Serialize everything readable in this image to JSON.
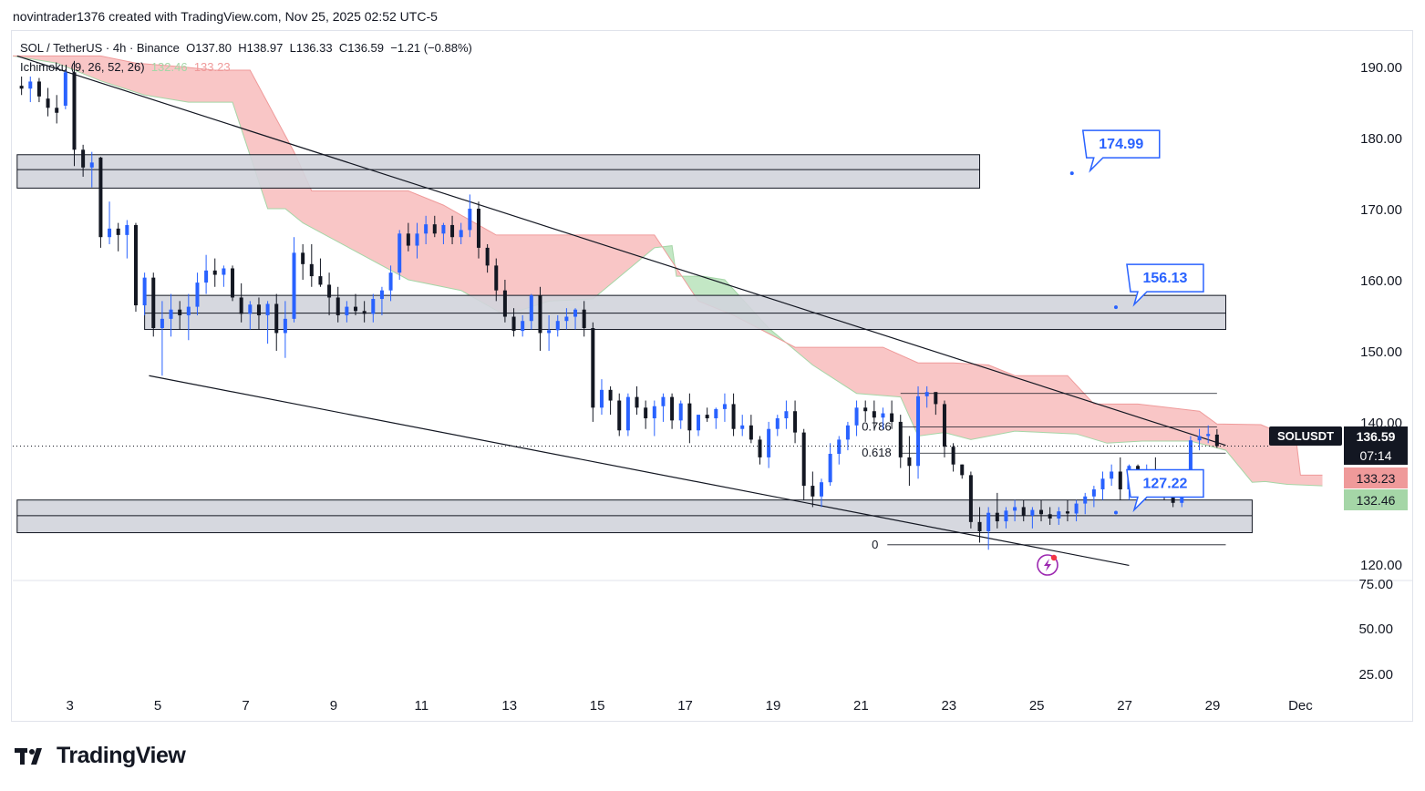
{
  "header": {
    "caption": "novintrader1376 created with TradingView.com, Nov 25, 2025 02:52 UTC-5"
  },
  "legend": {
    "symbol": "SOL / TetherUS · 4h · Binance",
    "open": "O137.80",
    "high": "H138.97",
    "low": "L136.33",
    "close": "C136.59",
    "change": "−1.21 (−0.88%)",
    "indicator": "Ichimoku (9, 26, 52, 26)",
    "ind_val1": "132.46",
    "ind_val2": "133.23"
  },
  "price_scale": {
    "symbol_badge": "SOLUSDT",
    "last_price": "136.59",
    "countdown": "07:14",
    "cloud_top": "133.23",
    "cloud_bottom": "132.46"
  },
  "brand": {
    "name": "TradingView"
  },
  "colors": {
    "up": "#2962ff",
    "down": "#131722",
    "cloud_bear": "#f8bcbc",
    "cloud_bull": "#b9e3bb",
    "zone": "#d1d4dc"
  },
  "chart_data": {
    "type": "candlestick",
    "title": "SOL / TetherUS · 4h · Binance",
    "x_tick_labels": [
      "3",
      "5",
      "7",
      "9",
      "11",
      "13",
      "15",
      "17",
      "19",
      "21",
      "23",
      "25",
      "27",
      "29",
      "Dec"
    ],
    "x_tick_days": [
      3,
      5,
      7,
      9,
      11,
      13,
      15,
      17,
      19,
      21,
      23,
      25,
      27,
      29,
      31
    ],
    "x_range_days": [
      1.7,
      31.8
    ],
    "y_tick_labels": [
      "190.00",
      "180.00",
      "170.00",
      "160.00",
      "150.00",
      "140.00",
      "120.00"
    ],
    "y_tick_values": [
      190,
      180,
      170,
      160,
      150,
      140,
      120
    ],
    "y_range": [
      117.8,
      194.5
    ],
    "lower_scale_labels": [
      "75.00",
      "50.00",
      "25.00"
    ],
    "last_price": 136.59,
    "candles": [
      [
        1.9,
        187.3,
        188.6,
        186,
        186.9
      ],
      [
        2.1,
        186.9,
        188.6,
        185,
        187.9
      ],
      [
        2.3,
        187.9,
        188.4,
        185,
        185.8
      ],
      [
        2.5,
        185.5,
        187,
        183,
        184.2
      ],
      [
        2.7,
        184.2,
        186,
        182,
        183.5
      ],
      [
        2.9,
        184.5,
        189.5,
        184,
        189.2
      ],
      [
        3.1,
        189.2,
        190.8,
        176,
        178.3
      ],
      [
        3.3,
        178.3,
        179,
        174.5,
        175.8
      ],
      [
        3.5,
        175.8,
        178,
        173,
        176.5
      ],
      [
        3.7,
        177.2,
        177.3,
        164.5,
        166
      ],
      [
        3.9,
        166,
        171,
        165,
        167.2
      ],
      [
        4.1,
        167.2,
        168,
        164,
        166.3
      ],
      [
        4.3,
        166.3,
        168.4,
        163,
        167.7
      ],
      [
        4.5,
        167.7,
        168,
        155.5,
        156.4
      ],
      [
        4.7,
        156.4,
        161,
        155,
        160.3
      ],
      [
        4.9,
        160.3,
        161,
        152,
        153.2
      ],
      [
        5.1,
        153.2,
        157,
        146.5,
        154.5
      ],
      [
        5.3,
        154.5,
        158,
        152,
        155.8
      ],
      [
        5.5,
        155.8,
        157,
        153,
        155
      ],
      [
        5.7,
        155,
        158,
        151.5,
        156.2
      ],
      [
        5.9,
        156.2,
        161,
        155,
        159.6
      ],
      [
        6.1,
        159.6,
        163.5,
        158,
        161.3
      ],
      [
        6.3,
        161.3,
        163,
        159,
        160.7
      ],
      [
        6.5,
        160.7,
        162,
        159,
        161.6
      ],
      [
        6.7,
        161.6,
        162,
        157,
        157.5
      ],
      [
        6.9,
        157.5,
        159.5,
        154,
        155.2
      ],
      [
        7.1,
        155.2,
        157,
        153,
        156.5
      ],
      [
        7.3,
        156.5,
        157.5,
        153,
        155
      ],
      [
        7.5,
        155,
        157,
        151,
        156.6
      ],
      [
        7.7,
        156.6,
        158,
        150,
        152.5
      ],
      [
        7.9,
        152.5,
        157,
        149,
        154.5
      ],
      [
        8.1,
        154.5,
        166,
        154,
        163.8
      ],
      [
        8.3,
        163.8,
        165,
        160,
        162.2
      ],
      [
        8.5,
        162.2,
        165,
        159,
        160.5
      ],
      [
        8.7,
        160.5,
        163,
        159,
        159.3
      ],
      [
        8.9,
        159.3,
        161,
        155,
        157.5
      ],
      [
        9.1,
        157.5,
        159,
        154,
        155
      ],
      [
        9.3,
        155,
        157,
        154,
        156.2
      ],
      [
        9.5,
        156.2,
        158,
        155,
        155.6
      ],
      [
        9.7,
        155.6,
        157,
        154,
        155.2
      ],
      [
        9.9,
        155.2,
        158,
        154,
        157.3
      ],
      [
        10.1,
        157.3,
        159,
        155,
        158.5
      ],
      [
        10.3,
        158.5,
        162,
        157,
        161
      ],
      [
        10.5,
        161,
        167,
        160,
        166.5
      ],
      [
        10.7,
        166.5,
        168,
        164,
        164.8
      ],
      [
        10.9,
        164.8,
        168,
        163,
        166.5
      ],
      [
        11.1,
        166.5,
        169,
        165,
        167.8
      ],
      [
        11.3,
        167.8,
        169,
        166,
        166.5
      ],
      [
        11.5,
        166.5,
        168,
        165,
        167.7
      ],
      [
        11.7,
        167.7,
        169,
        165,
        166
      ],
      [
        11.9,
        166,
        168,
        165,
        167
      ],
      [
        12.1,
        167,
        172,
        166,
        170
      ],
      [
        12.3,
        170,
        171,
        163,
        164.5
      ],
      [
        12.5,
        164.5,
        165,
        161,
        162
      ],
      [
        12.7,
        162,
        163,
        157,
        158.5
      ],
      [
        12.9,
        158.5,
        160,
        154,
        154.8
      ],
      [
        13.1,
        154.8,
        156,
        152,
        152.8
      ],
      [
        13.3,
        152.8,
        155,
        152,
        154.2
      ],
      [
        13.5,
        154.2,
        158,
        153,
        157.8
      ],
      [
        13.7,
        157.8,
        159,
        150,
        152.5
      ],
      [
        13.9,
        152.5,
        155,
        150,
        152.9
      ],
      [
        14.1,
        152.9,
        155,
        152,
        154.2
      ],
      [
        14.3,
        154.2,
        156,
        153,
        154.8
      ],
      [
        14.5,
        154.8,
        156,
        153,
        155.8
      ],
      [
        14.7,
        155.8,
        157,
        152,
        153.2
      ],
      [
        14.9,
        153.2,
        154,
        140,
        142
      ],
      [
        15.1,
        142,
        146,
        141,
        144.5
      ],
      [
        15.3,
        144.5,
        145,
        141,
        143
      ],
      [
        15.5,
        143,
        144,
        138,
        138.8
      ],
      [
        15.7,
        138.8,
        144,
        138,
        143.5
      ],
      [
        15.9,
        143.5,
        145,
        141,
        142
      ],
      [
        16.1,
        142,
        143,
        139,
        140.5
      ],
      [
        16.3,
        140.5,
        143,
        138,
        142.2
      ],
      [
        16.5,
        142.2,
        144,
        140,
        143.5
      ],
      [
        16.7,
        143.5,
        144,
        139,
        140.2
      ],
      [
        16.9,
        140.2,
        143,
        139,
        142.6
      ],
      [
        17.1,
        142.6,
        144,
        137,
        138.8
      ],
      [
        17.3,
        138.8,
        141,
        138,
        141
      ],
      [
        17.5,
        141,
        142,
        140,
        140.5
      ],
      [
        17.7,
        140.5,
        142,
        139,
        141.8
      ],
      [
        17.9,
        141.8,
        144,
        140,
        142.5
      ],
      [
        18.1,
        142.5,
        144,
        138,
        139
      ],
      [
        18.3,
        139,
        141,
        138,
        139.5
      ],
      [
        18.5,
        139.5,
        141,
        137,
        137.5
      ],
      [
        18.7,
        137.5,
        138,
        134,
        135
      ],
      [
        18.9,
        135,
        140,
        133.5,
        139
      ],
      [
        19.1,
        139,
        141,
        138,
        140.5
      ],
      [
        19.3,
        140.5,
        143,
        139,
        141.5
      ],
      [
        19.5,
        141.5,
        143,
        137,
        138.5
      ],
      [
        19.7,
        138.5,
        139,
        129,
        131
      ],
      [
        19.9,
        131,
        133,
        128,
        129.5
      ],
      [
        20.1,
        129.5,
        132,
        128,
        131.5
      ],
      [
        20.3,
        131.5,
        137,
        131,
        135.5
      ],
      [
        20.5,
        135.5,
        138,
        134,
        137.5
      ],
      [
        20.7,
        137.5,
        140,
        136,
        139.5
      ],
      [
        20.9,
        139.5,
        143,
        138,
        142
      ],
      [
        21.1,
        142,
        143,
        140,
        141.5
      ],
      [
        21.3,
        141.5,
        143,
        139,
        140.6
      ],
      [
        21.5,
        140.6,
        142,
        139,
        141.2
      ],
      [
        21.7,
        141.2,
        143,
        139,
        140
      ],
      [
        21.9,
        140,
        141,
        133.5,
        135
      ],
      [
        22.1,
        135,
        138,
        131,
        133.8
      ],
      [
        22.3,
        133.8,
        145,
        132,
        143.6
      ],
      [
        22.5,
        143.6,
        145,
        142,
        144.2
      ],
      [
        22.7,
        144.2,
        144,
        141,
        142.5
      ],
      [
        22.9,
        142.5,
        143,
        135,
        136.5
      ],
      [
        23.1,
        136.5,
        137,
        133,
        134
      ],
      [
        23.3,
        134,
        134,
        132,
        132.5
      ],
      [
        23.5,
        132.5,
        133,
        125,
        125.9
      ],
      [
        23.7,
        125.9,
        128,
        123,
        124.6
      ],
      [
        23.9,
        124.6,
        128,
        122,
        127.2
      ],
      [
        24.1,
        127.2,
        130,
        125,
        126
      ],
      [
        24.3,
        126,
        128,
        125,
        127.5
      ],
      [
        24.5,
        127.5,
        129,
        126,
        128
      ],
      [
        24.7,
        128,
        129,
        126,
        126.8
      ],
      [
        24.9,
        126.8,
        128,
        125,
        127.6
      ],
      [
        25.1,
        127.6,
        129,
        126,
        127
      ],
      [
        25.3,
        127,
        128,
        125.5,
        126.4
      ],
      [
        25.5,
        126.4,
        128,
        125.5,
        127.4
      ],
      [
        25.7,
        127.4,
        129,
        126,
        127.1
      ],
      [
        25.9,
        127.1,
        129,
        126,
        128.5
      ],
      [
        26.1,
        128.5,
        130,
        127,
        129.5
      ],
      [
        26.3,
        129.5,
        131,
        128,
        130.5
      ],
      [
        26.5,
        130.5,
        133,
        129,
        132
      ],
      [
        26.7,
        132,
        134,
        131,
        133
      ],
      [
        26.9,
        133,
        135,
        129,
        130.5
      ],
      [
        27.1,
        130.5,
        134,
        129,
        133.8
      ],
      [
        27.3,
        133.8,
        134,
        131,
        131.2
      ],
      [
        27.5,
        131.2,
        134,
        130,
        133.1
      ],
      [
        27.7,
        133.1,
        135,
        131,
        131.5
      ],
      [
        27.9,
        131.5,
        132,
        129,
        130
      ],
      [
        28.1,
        130,
        131,
        128,
        128.6
      ],
      [
        28.3,
        128.6,
        133,
        128,
        130.4
      ],
      [
        28.5,
        130.4,
        138,
        130,
        137.4
      ],
      [
        28.7,
        137.4,
        139,
        136,
        138
      ],
      [
        28.9,
        138,
        139.5,
        137,
        138.3
      ],
      [
        29.1,
        138.2,
        138.97,
        136.33,
        136.59
      ]
    ],
    "ichimoku": {
      "params": [
        9,
        26,
        52,
        26
      ],
      "span_a": [
        [
          1.7,
          191.5
        ],
        [
          2.7,
          190.5
        ],
        [
          3.7,
          188
        ],
        [
          4.7,
          186
        ],
        [
          5.7,
          185
        ],
        [
          6.7,
          185
        ],
        [
          7.5,
          170
        ],
        [
          7.9,
          170
        ],
        [
          8.3,
          168
        ],
        [
          9.5,
          164
        ],
        [
          10.7,
          160
        ],
        [
          11.9,
          158.5
        ],
        [
          12.9,
          155
        ],
        [
          13.9,
          157
        ],
        [
          14.9,
          157.3
        ],
        [
          16.3,
          164.5
        ],
        [
          16.7,
          164.8
        ],
        [
          16.8,
          160.5
        ],
        [
          17.4,
          160.5
        ],
        [
          17.9,
          160
        ],
        [
          18.9,
          153.2
        ],
        [
          19.9,
          148
        ],
        [
          20.9,
          144
        ],
        [
          21.9,
          143.5
        ],
        [
          22.3,
          138
        ],
        [
          22.9,
          138.5
        ],
        [
          23.5,
          137.5
        ],
        [
          24.5,
          138.7
        ],
        [
          25.9,
          138.3
        ],
        [
          26.6,
          137
        ],
        [
          27.4,
          137.3
        ],
        [
          28.5,
          137.3
        ],
        [
          29.3,
          136
        ],
        [
          29.9,
          131.5
        ],
        [
          30.2,
          131.6
        ],
        [
          30.7,
          131.2
        ],
        [
          31.5,
          131
        ]
      ],
      "span_b": [
        [
          1.7,
          191.5
        ],
        [
          3.7,
          191.5
        ],
        [
          4.5,
          190.5
        ],
        [
          5.5,
          190
        ],
        [
          6.3,
          189.5
        ],
        [
          7.1,
          189.5
        ],
        [
          8.1,
          178
        ],
        [
          8.5,
          172.5
        ],
        [
          10.7,
          172.5
        ],
        [
          11.5,
          170.5
        ],
        [
          12.7,
          166.3
        ],
        [
          15.1,
          166.3
        ],
        [
          16.3,
          166.3
        ],
        [
          17.3,
          157
        ],
        [
          18.1,
          155
        ],
        [
          19.5,
          150.5
        ],
        [
          21.5,
          150.5
        ],
        [
          22.3,
          148.3
        ],
        [
          23.1,
          148.3
        ],
        [
          23.9,
          148
        ],
        [
          24.5,
          146.5
        ],
        [
          25.7,
          146.5
        ],
        [
          26.3,
          142.5
        ],
        [
          27.3,
          142.5
        ],
        [
          28.7,
          141.5
        ],
        [
          29.1,
          139.7
        ],
        [
          30.1,
          139.6
        ],
        [
          30.9,
          137.5
        ],
        [
          31.0,
          132.5
        ],
        [
          31.5,
          132.5
        ]
      ]
    },
    "zones": [
      {
        "day_from": 1.8,
        "day_to": 23.7,
        "top": 177.6,
        "mid": 175.5,
        "bottom": 172.9
      },
      {
        "day_from": 4.7,
        "day_to": 29.3,
        "top": 157.8,
        "mid": 155.3,
        "bottom": 153
      },
      {
        "day_from": 1.8,
        "day_to": 29.9,
        "top": 129,
        "mid": 126.8,
        "bottom": 124.4
      }
    ],
    "trend_lines": [
      {
        "from": [
          1.8,
          191.5
        ],
        "to": [
          29.3,
          136.7
        ]
      },
      {
        "from": [
          4.8,
          146.5
        ],
        "to": [
          27.1,
          119.8
        ]
      }
    ],
    "fib_levels": [
      {
        "label": "0.786",
        "value": 139.3,
        "day_from": 21.9,
        "day_to": 29.1
      },
      {
        "label": "0.618",
        "value": 135.6,
        "day_from": 21.9,
        "day_to": 29.3
      },
      {
        "label": "0",
        "value": 122.7,
        "day_from": 21.6,
        "day_to": 29.3
      }
    ],
    "fib_top_value": 144,
    "targets": [
      {
        "label": "174.99",
        "value": 174.99,
        "day": 25.8
      },
      {
        "label": "156.13",
        "value": 156.13,
        "day": 26.8
      },
      {
        "label": "127.22",
        "value": 127.22,
        "day": 26.8
      }
    ],
    "lower_panel": "volume-style scale, empty"
  }
}
